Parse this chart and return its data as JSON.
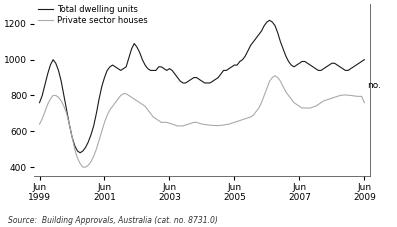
{
  "ylabel_right": "no.",
  "legend_labels": [
    "Total dwelling units",
    "Private sector houses"
  ],
  "legend_colors": [
    "#1a1a1a",
    "#aaaaaa"
  ],
  "source_text": "Source:  Building Approvals, Australia (cat. no. 8731.0)",
  "xlim_months": [
    -2,
    122
  ],
  "ylim": [
    350,
    1310
  ],
  "yticks": [
    400,
    600,
    800,
    1000,
    1200
  ],
  "xtick_positions": [
    0,
    24,
    48,
    72,
    96,
    120
  ],
  "xtick_labels_line1": [
    "Jun",
    "Jun",
    "Jun",
    "Jun",
    "Jun",
    "Jun"
  ],
  "xtick_labels_line2": [
    "1999",
    "2001",
    "2003",
    "2005",
    "2007",
    "2009"
  ],
  "bg_color": "#ffffff",
  "line_color_total": "#1a1a1a",
  "line_color_private": "#aaaaaa",
  "line_width": 0.8,
  "total_y": [
    760,
    800,
    860,
    920,
    970,
    1000,
    980,
    940,
    880,
    800,
    720,
    640,
    570,
    520,
    490,
    480,
    490,
    510,
    540,
    580,
    630,
    700,
    780,
    850,
    900,
    940,
    960,
    970,
    960,
    950,
    940,
    950,
    960,
    1010,
    1060,
    1090,
    1070,
    1040,
    1000,
    970,
    950,
    940,
    940,
    940,
    960,
    960,
    950,
    940,
    950,
    940,
    920,
    900,
    880,
    870,
    870,
    880,
    890,
    900,
    900,
    890,
    880,
    870,
    870,
    870,
    880,
    890,
    900,
    920,
    940,
    940,
    950,
    960,
    970,
    970,
    990,
    1000,
    1020,
    1050,
    1080,
    1100,
    1120,
    1140,
    1160,
    1190,
    1210,
    1220,
    1210,
    1190,
    1150,
    1100,
    1060,
    1020,
    990,
    970,
    960,
    970,
    980,
    990,
    990,
    980,
    970,
    960,
    950,
    940,
    940,
    950,
    960,
    970,
    980,
    980,
    970,
    960,
    950,
    940,
    940,
    950,
    960,
    970,
    980,
    990,
    1000
  ],
  "private_y": [
    640,
    670,
    710,
    750,
    780,
    800,
    800,
    790,
    770,
    740,
    700,
    640,
    570,
    500,
    450,
    420,
    400,
    400,
    410,
    430,
    460,
    500,
    550,
    600,
    650,
    690,
    720,
    740,
    760,
    780,
    800,
    810,
    810,
    800,
    790,
    780,
    770,
    760,
    750,
    740,
    720,
    700,
    680,
    670,
    660,
    650,
    650,
    650,
    645,
    640,
    635,
    630,
    630,
    630,
    635,
    640,
    645,
    650,
    650,
    645,
    640,
    638,
    636,
    634,
    633,
    632,
    632,
    633,
    635,
    638,
    640,
    645,
    650,
    655,
    660,
    665,
    670,
    675,
    680,
    690,
    710,
    730,
    760,
    800,
    840,
    880,
    900,
    910,
    900,
    880,
    850,
    820,
    800,
    780,
    760,
    750,
    740,
    730,
    730,
    730,
    730,
    735,
    740,
    750,
    760,
    770,
    775,
    780,
    785,
    790,
    795,
    800,
    802,
    803,
    802,
    800,
    798,
    796,
    795,
    795,
    760
  ]
}
